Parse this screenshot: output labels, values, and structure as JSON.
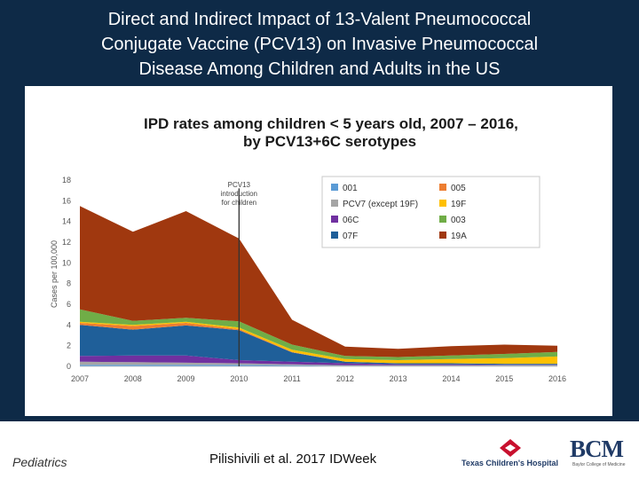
{
  "slide": {
    "title_lines": [
      "Direct and Indirect Impact of 13-Valent Pneumococcal",
      "Conjugate Vaccine (PCV13) on Invasive Pneumococcal",
      "Disease Among Children and Adults in the US"
    ],
    "footer": {
      "department": "Pediatrics",
      "citation": "Pilishivili et al. 2017 IDWeek",
      "hospital_logo_text": "Texas Children's Hospital",
      "bcm_logo_text": "BCM",
      "bcm_subtitle": "Baylor College of Medicine"
    }
  },
  "chart_data": {
    "type": "area",
    "title_lines": [
      "IPD rates among children < 5 years old, 2007 – 2016,",
      "by PCV13+6C serotypes"
    ],
    "xlabel": "",
    "ylabel": "Cases per 100,000",
    "x": [
      2007,
      2008,
      2009,
      2010,
      2011,
      2012,
      2013,
      2014,
      2015,
      2016
    ],
    "ylim": [
      0,
      18
    ],
    "yticks": [
      0,
      2,
      4,
      6,
      8,
      10,
      12,
      14,
      16,
      18
    ],
    "series": [
      {
        "name": "001",
        "color": "#5b9bd5",
        "values": [
          0.15,
          0.15,
          0.15,
          0.15,
          0.1,
          0.05,
          0.05,
          0.05,
          0.05,
          0.05
        ]
      },
      {
        "name": "PCV7 (except 19F)",
        "color": "#a5a5a5",
        "values": [
          0.3,
          0.25,
          0.2,
          0.15,
          0.1,
          0.05,
          0.05,
          0.05,
          0.05,
          0.05
        ]
      },
      {
        "name": "06C",
        "color": "#7030a0",
        "values": [
          0.55,
          0.65,
          0.7,
          0.3,
          0.25,
          0.2,
          0.1,
          0.1,
          0.05,
          0.05
        ]
      },
      {
        "name": "07F",
        "color": "#1f5f99",
        "values": [
          3.0,
          2.5,
          2.9,
          2.9,
          0.9,
          0.15,
          0.1,
          0.1,
          0.1,
          0.1
        ]
      },
      {
        "name": "005",
        "color": "#ed7d31",
        "values": [
          0.2,
          0.35,
          0.25,
          0.1,
          0.05,
          0.0,
          0.0,
          0.0,
          0.0,
          0.0
        ]
      },
      {
        "name": "19F",
        "color": "#ffc000",
        "values": [
          0.1,
          0.1,
          0.1,
          0.15,
          0.2,
          0.25,
          0.3,
          0.4,
          0.55,
          0.7
        ]
      },
      {
        "name": "003",
        "color": "#70ad47",
        "values": [
          1.2,
          0.4,
          0.4,
          0.6,
          0.5,
          0.3,
          0.3,
          0.35,
          0.4,
          0.45
        ]
      },
      {
        "name": "19A",
        "color": "#a0380f",
        "values": [
          10.0,
          8.6,
          10.3,
          8.0,
          2.4,
          0.9,
          0.8,
          0.9,
          0.9,
          0.6
        ]
      }
    ],
    "legend": {
      "placement": "top-right",
      "items": [
        {
          "name": "001",
          "color": "#5b9bd5"
        },
        {
          "name": "005",
          "color": "#ed7d31"
        },
        {
          "name": "PCV7 (except 19F)",
          "color": "#a5a5a5"
        },
        {
          "name": "19F",
          "color": "#ffc000"
        },
        {
          "name": "06C",
          "color": "#7030a0"
        },
        {
          "name": "003",
          "color": "#70ad47"
        },
        {
          "name": "07F",
          "color": "#1f5f99"
        },
        {
          "name": "19A",
          "color": "#a0380f"
        }
      ]
    },
    "annotation": {
      "x": 2010,
      "lines": [
        "PCV13",
        "introduction",
        "for children"
      ]
    }
  }
}
